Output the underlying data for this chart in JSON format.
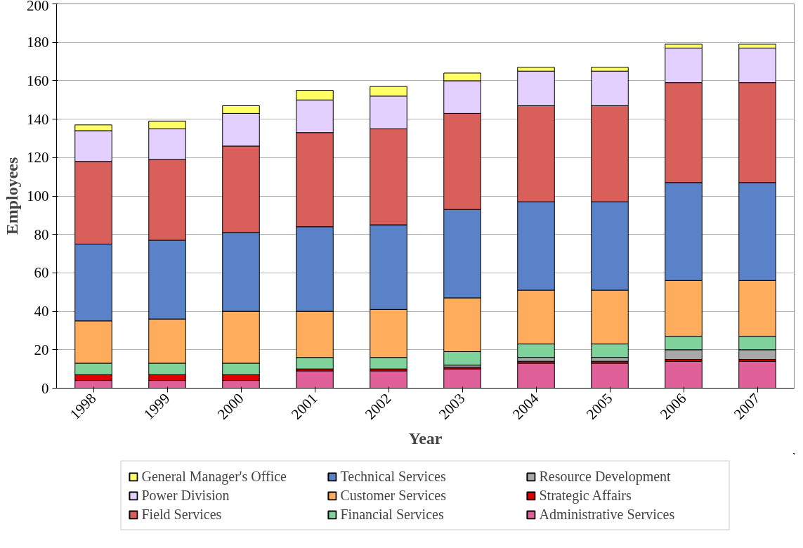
{
  "chart_data": {
    "type": "bar",
    "stacked": true,
    "xlabel": "Year",
    "ylabel": "Employees",
    "categories": [
      "1998",
      "1999",
      "2000",
      "2001",
      "2002",
      "2003",
      "2004",
      "2005",
      "2006",
      "2007"
    ],
    "ylim": [
      0,
      200
    ],
    "yticks": [
      0,
      20,
      40,
      60,
      80,
      100,
      120,
      140,
      160,
      180,
      200
    ],
    "grid": "y",
    "legend": "bottom",
    "series": [
      {
        "name": "Administrative Services",
        "color": "#e0609a",
        "values": [
          4,
          4,
          4,
          9,
          9,
          10,
          13,
          13,
          14,
          14
        ]
      },
      {
        "name": "Strategic Affairs",
        "color": "#dd0000",
        "values": [
          3,
          3,
          3,
          1,
          1,
          1,
          1,
          1,
          1,
          1
        ]
      },
      {
        "name": "Resource Development",
        "color": "#a8a8a8",
        "values": [
          0,
          0,
          0,
          0,
          0,
          1,
          2,
          2,
          5,
          5
        ]
      },
      {
        "name": "Financial Services",
        "color": "#7fd39a",
        "values": [
          6,
          6,
          6,
          6,
          6,
          7,
          7,
          7,
          7,
          7
        ]
      },
      {
        "name": "Customer Services",
        "color": "#ffad5c",
        "values": [
          22,
          23,
          27,
          24,
          25,
          28,
          28,
          28,
          29,
          29
        ]
      },
      {
        "name": "Technical Services",
        "color": "#5a82c8",
        "values": [
          40,
          41,
          41,
          44,
          44,
          46,
          46,
          46,
          51,
          51
        ]
      },
      {
        "name": "Field Services",
        "color": "#d9605a",
        "values": [
          43,
          42,
          45,
          49,
          50,
          50,
          50,
          50,
          52,
          52
        ]
      },
      {
        "name": "Power Division",
        "color": "#e4d0ff",
        "values": [
          16,
          16,
          17,
          17,
          17,
          17,
          18,
          18,
          18,
          18
        ]
      },
      {
        "name": "General Manager's Office",
        "color": "#ffff66",
        "values": [
          3,
          4,
          4,
          5,
          5,
          4,
          2,
          2,
          2,
          2
        ]
      }
    ]
  }
}
